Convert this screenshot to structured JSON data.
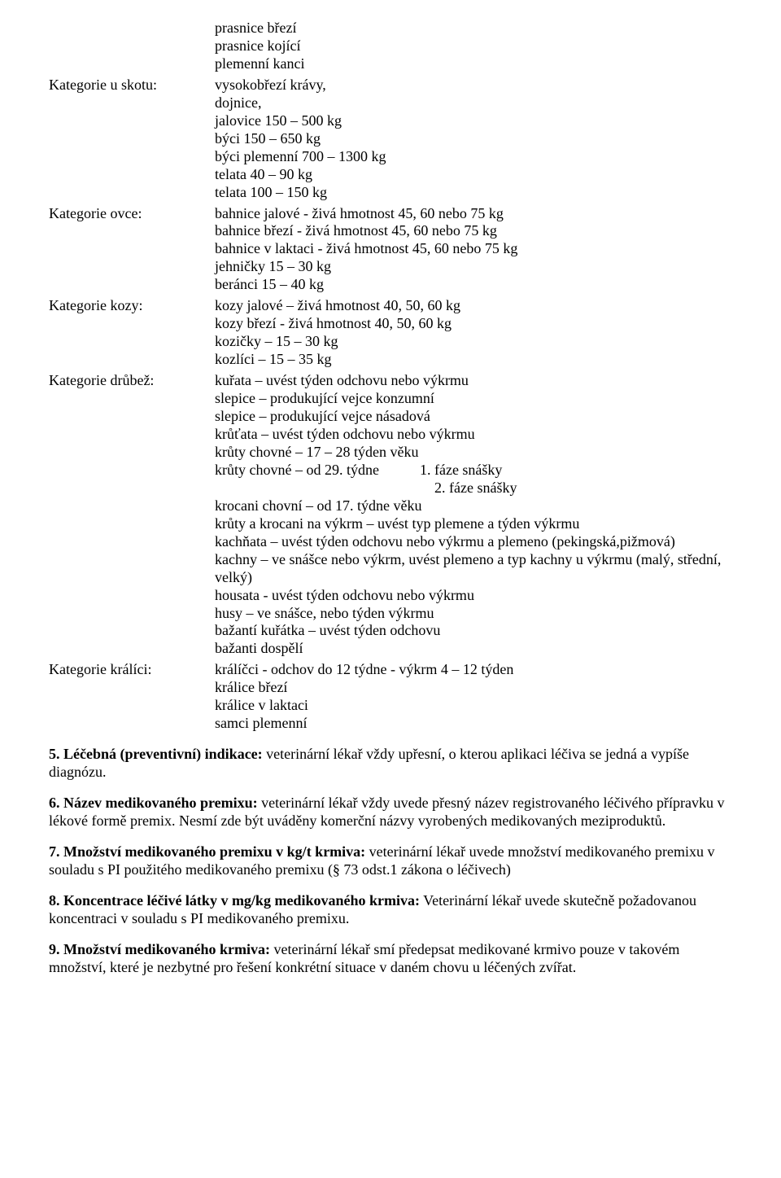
{
  "pre_lines": [
    "prasnice březí",
    "prasnice kojící",
    "plemenní kanci"
  ],
  "categories": [
    {
      "key": "Kategorie u skotu:",
      "lines": [
        "vysokobřezí krávy,",
        "dojnice,",
        "jalovice  150 – 500 kg",
        "býci 150 – 650 kg",
        "býci plemenní  700 – 1300 kg",
        "telata  40 – 90 kg",
        "telata  100 – 150 kg"
      ]
    },
    {
      "key": "Kategorie ovce:",
      "lines": [
        "bahnice jalové - živá hmotnost 45, 60 nebo 75 kg",
        "bahnice březí -   živá hmotnost 45, 60 nebo 75 kg",
        "bahnice v laktaci - živá hmotnost 45, 60 nebo 75 kg",
        "jehničky  15 – 30 kg",
        "beránci 15 – 40 kg"
      ]
    },
    {
      "key": "Kategorie kozy:",
      "lines": [
        "kozy jalové – živá hmotnost 40, 50, 60 kg",
        "kozy březí -  živá hmotnost 40, 50, 60 kg",
        "kozičky – 15 – 30 kg",
        "kozlíci – 15 – 35 kg"
      ]
    },
    {
      "key": "Kategorie drůbež:",
      "lines": [
        "kuřata – uvést týden odchovu nebo výkrmu",
        "slepice – produkující vejce konzumní",
        "slepice – produkující vejce násadová",
        "krůťata – uvést týden odchovu nebo výkrmu",
        "krůty chovné – 17 – 28 týden věku"
      ],
      "krůty29_prefix": "krůty chovné – od 29. týdne",
      "faze1": "1. fáze snášky",
      "faze2": "2. fáze snášky",
      "lines_after": [
        "krocani chovní – od 17. týdne věku",
        "krůty a krocani na výkrm – uvést typ plemene a týden výkrmu",
        "kachňata – uvést týden odchovu nebo výkrmu a plemeno (pekingská,pižmová)",
        "kachny – ve snášce nebo výkrm, uvést plemeno a typ kachny u výkrmu (malý, střední, velký)",
        "housata -  uvést týden odchovu nebo výkrmu",
        "husy – ve snášce, nebo týden výkrmu",
        "bažantí kuřátka – uvést týden odchovu",
        "bažanti dospělí"
      ]
    },
    {
      "key": "Kategorie králíci:",
      "lines": [
        "králíčci  - odchov do 12 týdne - výkrm 4 – 12 týden",
        "králice březí",
        "králice v laktaci",
        "samci plemenní"
      ]
    }
  ],
  "sections": [
    {
      "num": "5.",
      "lead": "Léčebná (preventivní) indikace:",
      "body": " veterinární lékař vždy upřesní, o kterou aplikaci léčiva se jedná a vypíše diagnózu."
    },
    {
      "num": "6.",
      "lead": "Název medikovaného premixu:",
      "body": " veterinární lékař vždy uvede přesný název registrovaného léčivého přípravku v lékové formě premix. Nesmí zde být uváděny komerční názvy vyrobených medikovaných meziproduktů."
    },
    {
      "num": "7.",
      "lead": "Množství medikovaného premixu v kg/t krmiva:",
      "body": " veterinární lékař uvede množství medikovaného premixu v souladu s PI použitého medikovaného premixu (§ 73 odst.1 zákona o léčivech)"
    },
    {
      "num": "8.",
      "lead": "Koncentrace léčivé látky v mg/kg medikovaného krmiva:",
      "body": " Veterinární lékař uvede skutečně požadovanou koncentraci v souladu s PI medikovaného premixu."
    },
    {
      "num": "9.",
      "lead": "Množství medikovaného krmiva:",
      "body": " veterinární lékař smí předepsat medikované krmivo pouze v takovém množství, které je nezbytné pro řešení konkrétní situace v daném chovu u léčených zvířat."
    }
  ]
}
